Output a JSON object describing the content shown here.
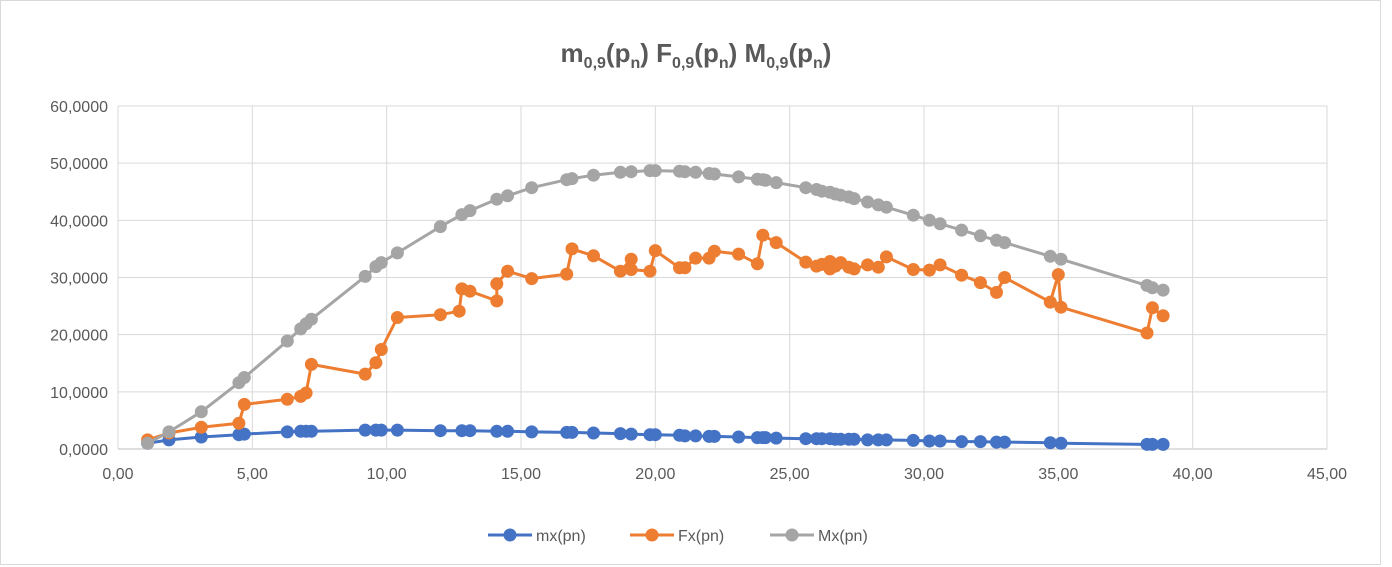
{
  "chart_data": {
    "type": "scatter",
    "title": {
      "m": "m",
      "m_sub": "0,9",
      "p1": "(p",
      "n_sub": "n",
      "p2": ")",
      "F": "F",
      "M": "M"
    },
    "title_text": "m0,9(pn) F0,9(pn) M0,9(pn)",
    "xlabel": "",
    "ylabel": "",
    "xlim": [
      0,
      45
    ],
    "ylim": [
      0,
      60
    ],
    "x_ticks": [
      "0,00",
      "5,00",
      "10,00",
      "15,00",
      "20,00",
      "25,00",
      "30,00",
      "35,00",
      "40,00",
      "45,00"
    ],
    "y_ticks": [
      "0,0000",
      "10,0000",
      "20,0000",
      "30,0000",
      "40,0000",
      "50,0000",
      "60,0000"
    ],
    "grid": true,
    "legend_position": "bottom",
    "series": [
      {
        "name": "mx(pn)",
        "color": "#4472c4",
        "points": [
          [
            1.1,
            1.0
          ],
          [
            1.9,
            1.6
          ],
          [
            3.1,
            2.1
          ],
          [
            4.5,
            2.5
          ],
          [
            4.7,
            2.6
          ],
          [
            6.3,
            3.0
          ],
          [
            6.8,
            3.1
          ],
          [
            7.0,
            3.1
          ],
          [
            7.2,
            3.1
          ],
          [
            9.2,
            3.3
          ],
          [
            9.6,
            3.3
          ],
          [
            9.8,
            3.3
          ],
          [
            10.4,
            3.3
          ],
          [
            12.0,
            3.2
          ],
          [
            12.8,
            3.2
          ],
          [
            13.1,
            3.2
          ],
          [
            14.1,
            3.1
          ],
          [
            14.5,
            3.1
          ],
          [
            15.4,
            3.0
          ],
          [
            16.7,
            2.9
          ],
          [
            16.9,
            2.9
          ],
          [
            17.7,
            2.8
          ],
          [
            18.7,
            2.7
          ],
          [
            19.1,
            2.6
          ],
          [
            19.8,
            2.5
          ],
          [
            20.0,
            2.5
          ],
          [
            20.9,
            2.4
          ],
          [
            21.1,
            2.3
          ],
          [
            21.5,
            2.3
          ],
          [
            22.0,
            2.2
          ],
          [
            22.2,
            2.2
          ],
          [
            23.1,
            2.1
          ],
          [
            23.8,
            2.0
          ],
          [
            24.0,
            2.0
          ],
          [
            24.1,
            2.0
          ],
          [
            24.5,
            1.9
          ],
          [
            25.6,
            1.8
          ],
          [
            26.0,
            1.8
          ],
          [
            26.2,
            1.8
          ],
          [
            26.5,
            1.8
          ],
          [
            26.7,
            1.7
          ],
          [
            26.9,
            1.7
          ],
          [
            27.2,
            1.7
          ],
          [
            27.4,
            1.7
          ],
          [
            27.9,
            1.6
          ],
          [
            28.3,
            1.6
          ],
          [
            28.6,
            1.6
          ],
          [
            29.6,
            1.5
          ],
          [
            30.2,
            1.4
          ],
          [
            30.6,
            1.4
          ],
          [
            31.4,
            1.3
          ],
          [
            32.1,
            1.3
          ],
          [
            32.7,
            1.2
          ],
          [
            33.0,
            1.2
          ],
          [
            34.7,
            1.1
          ],
          [
            35.1,
            1.0
          ],
          [
            38.3,
            0.8
          ],
          [
            38.5,
            0.8
          ],
          [
            38.9,
            0.8
          ]
        ]
      },
      {
        "name": "Fx(pn)",
        "color": "#ed7d31",
        "points": [
          [
            1.1,
            1.6
          ],
          [
            1.9,
            2.8
          ],
          [
            3.1,
            3.8
          ],
          [
            4.5,
            4.5
          ],
          [
            4.7,
            7.8
          ],
          [
            6.3,
            8.7
          ],
          [
            6.8,
            9.2
          ],
          [
            7.0,
            9.8
          ],
          [
            7.2,
            14.8
          ],
          [
            9.2,
            13.1
          ],
          [
            9.6,
            15.1
          ],
          [
            9.8,
            17.4
          ],
          [
            10.4,
            23.0
          ],
          [
            12.0,
            23.5
          ],
          [
            12.7,
            24.1
          ],
          [
            12.8,
            28.0
          ],
          [
            13.1,
            27.6
          ],
          [
            14.1,
            25.9
          ],
          [
            14.1,
            28.9
          ],
          [
            14.5,
            31.1
          ],
          [
            15.4,
            29.8
          ],
          [
            16.7,
            30.6
          ],
          [
            16.9,
            35.0
          ],
          [
            17.7,
            33.8
          ],
          [
            18.7,
            31.1
          ],
          [
            19.1,
            33.2
          ],
          [
            19.1,
            31.4
          ],
          [
            19.8,
            31.1
          ],
          [
            20.0,
            34.7
          ],
          [
            20.9,
            31.7
          ],
          [
            21.1,
            31.7
          ],
          [
            21.5,
            33.4
          ],
          [
            22.0,
            33.4
          ],
          [
            22.2,
            34.6
          ],
          [
            23.1,
            34.1
          ],
          [
            23.8,
            32.4
          ],
          [
            24.0,
            37.4
          ],
          [
            24.5,
            36.1
          ],
          [
            25.6,
            32.7
          ],
          [
            26.0,
            32.0
          ],
          [
            26.2,
            32.3
          ],
          [
            26.5,
            31.5
          ],
          [
            26.5,
            32.8
          ],
          [
            26.7,
            32.0
          ],
          [
            26.9,
            32.6
          ],
          [
            27.2,
            31.8
          ],
          [
            27.4,
            31.5
          ],
          [
            27.9,
            32.2
          ],
          [
            28.3,
            31.8
          ],
          [
            28.6,
            33.6
          ],
          [
            29.6,
            31.4
          ],
          [
            30.2,
            31.3
          ],
          [
            30.6,
            32.2
          ],
          [
            31.4,
            30.4
          ],
          [
            32.1,
            29.1
          ],
          [
            32.7,
            27.4
          ],
          [
            33.0,
            30.0
          ],
          [
            34.7,
            25.7
          ],
          [
            35.0,
            30.5
          ],
          [
            35.1,
            24.8
          ],
          [
            38.3,
            20.3
          ],
          [
            38.5,
            24.7
          ],
          [
            38.9,
            23.3
          ]
        ]
      },
      {
        "name": "Mx(pn)",
        "color": "#a5a5a5",
        "points": [
          [
            1.1,
            1.0
          ],
          [
            1.9,
            3.0
          ],
          [
            3.1,
            6.5
          ],
          [
            4.5,
            11.6
          ],
          [
            4.7,
            12.5
          ],
          [
            6.3,
            18.9
          ],
          [
            6.8,
            21.0
          ],
          [
            7.0,
            21.9
          ],
          [
            7.2,
            22.7
          ],
          [
            9.2,
            30.2
          ],
          [
            9.6,
            31.9
          ],
          [
            9.8,
            32.6
          ],
          [
            10.4,
            34.3
          ],
          [
            12.0,
            38.9
          ],
          [
            12.8,
            41.0
          ],
          [
            13.1,
            41.7
          ],
          [
            14.1,
            43.7
          ],
          [
            14.5,
            44.3
          ],
          [
            15.4,
            45.7
          ],
          [
            16.7,
            47.1
          ],
          [
            16.9,
            47.3
          ],
          [
            17.7,
            47.9
          ],
          [
            18.7,
            48.4
          ],
          [
            19.1,
            48.5
          ],
          [
            19.8,
            48.7
          ],
          [
            20.0,
            48.7
          ],
          [
            20.9,
            48.6
          ],
          [
            21.1,
            48.5
          ],
          [
            21.5,
            48.4
          ],
          [
            22.0,
            48.2
          ],
          [
            22.2,
            48.1
          ],
          [
            23.1,
            47.6
          ],
          [
            23.8,
            47.2
          ],
          [
            24.0,
            47.1
          ],
          [
            24.1,
            47.0
          ],
          [
            24.5,
            46.6
          ],
          [
            25.6,
            45.7
          ],
          [
            26.0,
            45.4
          ],
          [
            26.2,
            45.1
          ],
          [
            26.5,
            44.9
          ],
          [
            26.7,
            44.6
          ],
          [
            26.9,
            44.4
          ],
          [
            27.2,
            44.1
          ],
          [
            27.4,
            43.8
          ],
          [
            27.9,
            43.2
          ],
          [
            28.3,
            42.7
          ],
          [
            28.6,
            42.3
          ],
          [
            29.6,
            40.9
          ],
          [
            30.2,
            40.0
          ],
          [
            30.6,
            39.4
          ],
          [
            31.4,
            38.3
          ],
          [
            32.1,
            37.3
          ],
          [
            32.7,
            36.5
          ],
          [
            33.0,
            36.1
          ],
          [
            34.7,
            33.7
          ],
          [
            35.1,
            33.2
          ],
          [
            38.3,
            28.6
          ],
          [
            38.5,
            28.2
          ],
          [
            38.9,
            27.8
          ]
        ]
      }
    ]
  }
}
